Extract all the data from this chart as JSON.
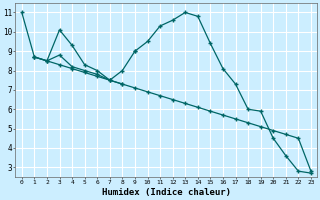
{
  "xlabel": "Humidex (Indice chaleur)",
  "bg_color": "#cceeff",
  "grid_color": "#ffffff",
  "line_color": "#006666",
  "xlim": [
    -0.5,
    23.5
  ],
  "ylim": [
    2.5,
    11.5
  ],
  "yticks": [
    3,
    4,
    5,
    6,
    7,
    8,
    9,
    10,
    11
  ],
  "xticks": [
    0,
    1,
    2,
    3,
    4,
    5,
    6,
    7,
    8,
    9,
    10,
    11,
    12,
    13,
    14,
    15,
    16,
    17,
    18,
    19,
    20,
    21,
    22,
    23
  ],
  "series": [
    {
      "x": [
        0,
        1,
        2,
        3,
        4,
        5,
        6,
        7,
        8,
        9
      ],
      "y": [
        11.0,
        8.7,
        8.5,
        10.1,
        9.3,
        8.3,
        8.0,
        7.5,
        8.0,
        9.0
      ]
    },
    {
      "x": [
        1,
        2,
        3,
        4,
        5,
        6,
        7,
        8
      ],
      "y": [
        8.7,
        8.5,
        8.8,
        8.2,
        8.0,
        7.8,
        7.5,
        7.3
      ]
    },
    {
      "x": [
        9,
        10,
        11,
        12,
        13,
        14,
        15,
        16,
        17,
        18,
        19,
        20,
        21,
        22,
        23
      ],
      "y": [
        9.0,
        9.5,
        10.3,
        10.6,
        11.0,
        10.8,
        9.4,
        8.1,
        7.3,
        6.0,
        5.9,
        4.5,
        3.6,
        2.8,
        2.7
      ]
    },
    {
      "x": [
        1,
        2,
        3,
        4,
        5,
        6,
        7,
        8,
        9,
        10,
        11,
        12,
        13,
        14,
        15,
        16,
        17,
        18,
        19,
        20,
        21,
        22,
        23
      ],
      "y": [
        8.7,
        8.5,
        8.3,
        8.1,
        7.9,
        7.7,
        7.5,
        7.3,
        7.1,
        6.9,
        6.7,
        6.5,
        6.3,
        6.1,
        5.9,
        5.7,
        5.5,
        5.3,
        5.1,
        4.9,
        4.7,
        4.5,
        2.8
      ]
    }
  ]
}
